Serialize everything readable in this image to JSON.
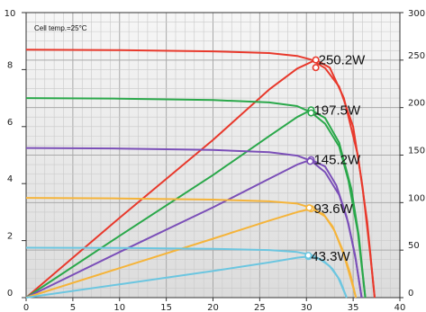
{
  "chart_data": {
    "type": "line",
    "annotation": "Cell temp.=25°C",
    "xlim": [
      0,
      40
    ],
    "ylim_left": [
      0,
      10
    ],
    "ylim_right": [
      0,
      300
    ],
    "x_ticks": [
      "0",
      "5",
      "10",
      "15",
      "20",
      "25",
      "30",
      "35",
      "40"
    ],
    "y_left_ticks": [
      "0",
      "2",
      "4",
      "6",
      "8",
      "10"
    ],
    "y_right_ticks": [
      "0",
      "50",
      "100",
      "150",
      "200",
      "250",
      "300"
    ],
    "grid": true,
    "series": [
      {
        "power_label": "250.2W",
        "color": "#e8392c",
        "iv": [
          [
            0,
            8.7
          ],
          [
            10,
            8.68
          ],
          [
            20,
            8.64
          ],
          [
            26,
            8.58
          ],
          [
            29,
            8.48
          ],
          [
            30.5,
            8.35
          ],
          [
            32,
            8.05
          ],
          [
            33.5,
            7.4
          ],
          [
            35,
            6.0
          ],
          [
            36,
            3.9
          ],
          [
            36.8,
            1.6
          ],
          [
            37.3,
            0
          ]
        ],
        "pv": [
          [
            0,
            0
          ],
          [
            10,
            84
          ],
          [
            20,
            166
          ],
          [
            26,
            219
          ],
          [
            29,
            241
          ],
          [
            31,
            250.2
          ],
          [
            32.5,
            242
          ],
          [
            34,
            210
          ],
          [
            35.5,
            150
          ],
          [
            36.5,
            80
          ],
          [
            37.3,
            0
          ]
        ],
        "mpp": [
          31,
          8.07
        ]
      },
      {
        "power_label": "197.5W",
        "color": "#2aa84a",
        "iv": [
          [
            0,
            7.0
          ],
          [
            10,
            6.98
          ],
          [
            20,
            6.93
          ],
          [
            26,
            6.85
          ],
          [
            29,
            6.72
          ],
          [
            30.5,
            6.5
          ],
          [
            32,
            6.1
          ],
          [
            33.5,
            5.3
          ],
          [
            34.5,
            4.1
          ],
          [
            35.5,
            2.3
          ],
          [
            36.3,
            0
          ]
        ],
        "pv": [
          [
            0,
            0
          ],
          [
            10,
            65
          ],
          [
            20,
            129
          ],
          [
            26,
            170
          ],
          [
            29,
            190
          ],
          [
            30.5,
            197.5
          ],
          [
            32,
            189
          ],
          [
            33.5,
            163
          ],
          [
            34.8,
            115
          ],
          [
            35.6,
            65
          ],
          [
            36.3,
            0
          ]
        ],
        "mpp": [
          30.5,
          6.48
        ]
      },
      {
        "power_label": "145.2W",
        "color": "#7b4fb8",
        "iv": [
          [
            0,
            5.25
          ],
          [
            10,
            5.23
          ],
          [
            20,
            5.18
          ],
          [
            26,
            5.1
          ],
          [
            29,
            4.98
          ],
          [
            30.5,
            4.8
          ],
          [
            32,
            4.4
          ],
          [
            33.5,
            3.6
          ],
          [
            34.5,
            2.6
          ],
          [
            35.3,
            1.3
          ],
          [
            35.9,
            0
          ]
        ],
        "pv": [
          [
            0,
            0
          ],
          [
            10,
            48
          ],
          [
            20,
            95
          ],
          [
            26,
            125
          ],
          [
            29,
            140
          ],
          [
            30.5,
            145.2
          ],
          [
            32,
            138
          ],
          [
            33.2,
            118
          ],
          [
            34.3,
            85
          ],
          [
            35.2,
            45
          ],
          [
            35.9,
            0
          ]
        ],
        "mpp": [
          30.4,
          4.78
        ]
      },
      {
        "power_label": "93.6W",
        "color": "#f5b43a",
        "iv": [
          [
            0,
            3.5
          ],
          [
            10,
            3.48
          ],
          [
            20,
            3.44
          ],
          [
            26,
            3.38
          ],
          [
            29,
            3.3
          ],
          [
            30.5,
            3.15
          ],
          [
            32,
            2.85
          ],
          [
            33,
            2.35
          ],
          [
            34,
            1.5
          ],
          [
            34.8,
            0.6
          ],
          [
            35.3,
            0
          ]
        ],
        "pv": [
          [
            0,
            0
          ],
          [
            10,
            31
          ],
          [
            20,
            62
          ],
          [
            26,
            81
          ],
          [
            29,
            90
          ],
          [
            30.5,
            93.6
          ],
          [
            31.8,
            88
          ],
          [
            32.8,
            75
          ],
          [
            33.8,
            52
          ],
          [
            34.7,
            25
          ],
          [
            35.3,
            0
          ]
        ],
        "mpp": [
          30.3,
          3.15
        ]
      },
      {
        "power_label": "43.3W",
        "color": "#6cc6e0",
        "iv": [
          [
            0,
            1.75
          ],
          [
            10,
            1.74
          ],
          [
            20,
            1.71
          ],
          [
            26,
            1.67
          ],
          [
            29,
            1.6
          ],
          [
            30.5,
            1.5
          ],
          [
            31.8,
            1.3
          ],
          [
            32.8,
            1.0
          ],
          [
            33.6,
            0.6
          ],
          [
            34.3,
            0
          ]
        ],
        "pv": [
          [
            0,
            0
          ],
          [
            10,
            14
          ],
          [
            20,
            28
          ],
          [
            26,
            37
          ],
          [
            29,
            42
          ],
          [
            30.2,
            43.3
          ],
          [
            31.5,
            40
          ],
          [
            32.5,
            33
          ],
          [
            33.4,
            21
          ],
          [
            34.3,
            0
          ]
        ],
        "mpp": [
          30.2,
          1.48
        ]
      }
    ]
  }
}
